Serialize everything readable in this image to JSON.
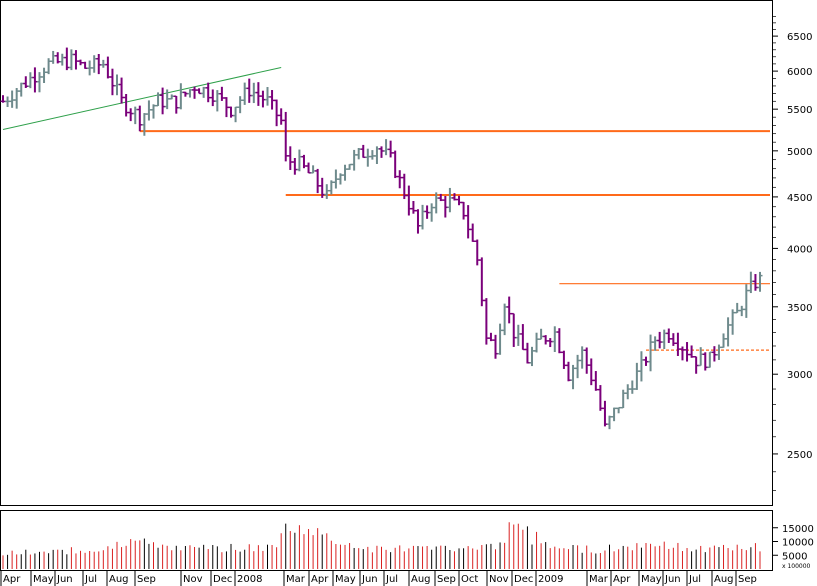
{
  "chart_data": [
    {
      "type": "ohlc",
      "y_scale": "log",
      "ylim": [
        2250,
        6900
      ],
      "y_ticks": [
        2500,
        3000,
        3500,
        4000,
        4500,
        5000,
        5500,
        6000,
        6500
      ],
      "x_axis_labels": [
        "Apr",
        "May",
        "Jun",
        "Jul",
        "Aug",
        "Sep",
        "Nov",
        "Dec",
        "2008",
        "Mar",
        "Apr",
        "May",
        "Jun",
        "Jul",
        "Aug",
        "Sep",
        "Oct",
        "Nov",
        "Dec",
        "2009",
        "Mar",
        "Apr",
        "May",
        "Jun",
        "Jul",
        "Aug",
        "Sep"
      ],
      "colors": {
        "up": "#6e8a8c",
        "down": "#7a007a"
      },
      "anchors": [
        [
          0,
          5600
        ],
        [
          5,
          5850
        ],
        [
          10,
          6100
        ],
        [
          15,
          6150
        ],
        [
          18,
          6050
        ],
        [
          22,
          6100
        ],
        [
          26,
          5600
        ],
        [
          30,
          5400
        ],
        [
          34,
          5600
        ],
        [
          38,
          5600
        ],
        [
          42,
          5800
        ],
        [
          46,
          5700
        ],
        [
          50,
          5500
        ],
        [
          54,
          5750
        ],
        [
          58,
          5600
        ],
        [
          61,
          5350
        ],
        [
          62,
          4900
        ],
        [
          65,
          4850
        ],
        [
          68,
          4700
        ],
        [
          71,
          4500
        ],
        [
          74,
          4800
        ],
        [
          78,
          4950
        ],
        [
          82,
          5050
        ],
        [
          85,
          4900
        ],
        [
          88,
          4550
        ],
        [
          91,
          4200
        ],
        [
          94,
          4450
        ],
        [
          98,
          4450
        ],
        [
          101,
          4350
        ],
        [
          104,
          3900
        ],
        [
          106,
          3250
        ],
        [
          108,
          3200
        ],
        [
          110,
          3550
        ],
        [
          112,
          3300
        ],
        [
          115,
          3100
        ],
        [
          118,
          3250
        ],
        [
          121,
          3300
        ],
        [
          124,
          3000
        ],
        [
          127,
          3150
        ],
        [
          130,
          2900
        ],
        [
          132,
          2650
        ],
        [
          134,
          2750
        ],
        [
          137,
          2900
        ],
        [
          140,
          3050
        ],
        [
          143,
          3250
        ],
        [
          146,
          3300
        ],
        [
          149,
          3200
        ],
        [
          152,
          3100
        ],
        [
          155,
          3100
        ],
        [
          158,
          3300
        ],
        [
          161,
          3450
        ],
        [
          163,
          3600
        ],
        [
          165,
          3700
        ],
        [
          166,
          3720
        ]
      ],
      "horizontal_lines": [
        {
          "value": 5230,
          "start_week": 30,
          "style": "solid",
          "weight": "heavy",
          "color": "#ff6a1a"
        },
        {
          "value": 4520,
          "start_week": 62,
          "style": "solid",
          "weight": "heavy",
          "color": "#ff6a1a"
        },
        {
          "value": 3690,
          "start_week": 122,
          "style": "solid",
          "weight": "thin",
          "color": "#ff6a1a"
        },
        {
          "value": 3170,
          "start_week": 141,
          "style": "dashed",
          "weight": "thin",
          "color": "#ff6a1a"
        }
      ],
      "trend_lines": [
        {
          "from": [
            0,
            5250
          ],
          "to": [
            61,
            6050
          ],
          "color": "#2ea04a"
        }
      ],
      "grid": false
    },
    {
      "type": "bar",
      "y_ticks": [
        5000,
        10000,
        15000
      ],
      "y_multiplier_label": "x 100000",
      "colors": {
        "up": "#000000",
        "down": "#d92020"
      },
      "anchors": [
        [
          0,
          5500
        ],
        [
          20,
          7000
        ],
        [
          28,
          10500
        ],
        [
          40,
          7500
        ],
        [
          60,
          7800
        ],
        [
          62,
          16500
        ],
        [
          80,
          7000
        ],
        [
          110,
          8500
        ],
        [
          111,
          17000
        ],
        [
          113,
          14500
        ],
        [
          118,
          8000
        ],
        [
          130,
          7000
        ],
        [
          145,
          9500
        ],
        [
          150,
          7000
        ],
        [
          166,
          8000
        ]
      ],
      "spikes": [
        [
          62,
          16500
        ],
        [
          111,
          17000
        ],
        [
          115,
          15500
        ],
        [
          117,
          13500
        ],
        [
          96,
          8500
        ],
        [
          119,
          9800
        ]
      ]
    }
  ]
}
